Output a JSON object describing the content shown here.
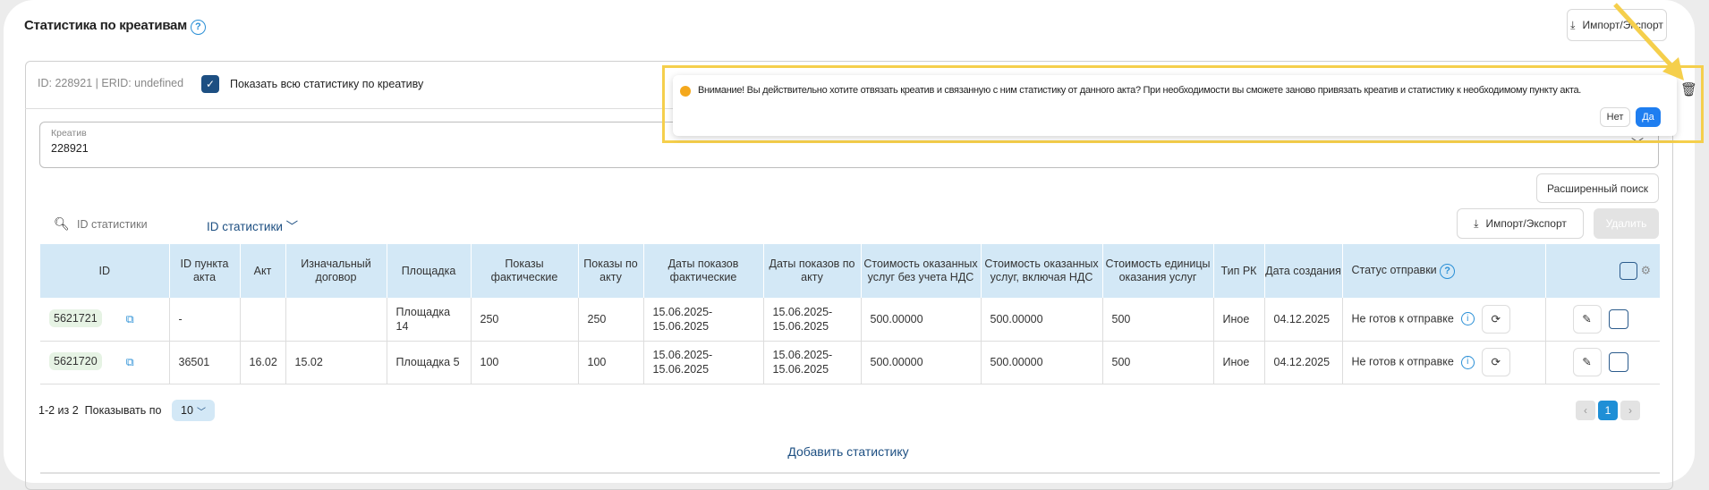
{
  "header": {
    "title": "Статистика по креативам",
    "import_export": "Импорт/Экспорт"
  },
  "card": {
    "meta": "ID: 228921 | ERID: undefined",
    "show_all_label": "Показать всю статистику по креативу",
    "show_all_checked": true,
    "creative_label": "Креатив",
    "creative_value": "228921"
  },
  "popup": {
    "message": "Внимание! Вы действительно хотите отвязать креатив и связанную с ним статистику от данного акта? При необходимости вы сможете заново привязать креатив и статистику к необходимому пункту акта.",
    "no": "Нет",
    "yes": "Да",
    "highlight_color": "#f5cf4c"
  },
  "toolbar": {
    "advanced_search": "Расширенный поиск",
    "search_placeholder": "ID статистики",
    "search_field": "ID статистики",
    "import_export": "Импорт/Экспорт",
    "delete": "Удалить"
  },
  "table": {
    "headers": [
      "ID",
      "ID пункта акта",
      "Акт",
      "Изначальный договор",
      "Площадка",
      "Показы фактические",
      "Показы по акту",
      "Даты показов фактические",
      "Даты показов по акту",
      "Стоимость оказанных услуг без учета НДС",
      "Стоимость оказанных услуг, включая НДС",
      "Стоимость единицы оказания услуг",
      "Тип РК",
      "Дата создания",
      "Статус отправки"
    ],
    "rows": [
      {
        "id": "5621721",
        "point": "-",
        "act": "",
        "contract": "",
        "site": "Площадка 14",
        "shows_fact": "250",
        "shows_act": "250",
        "dates_fact": "15.06.2025-15.06.2025",
        "dates_act": "15.06.2025-15.06.2025",
        "cost_no_vat": "500.00000",
        "cost_vat": "500.00000",
        "unit_cost": "500",
        "type": "Иное",
        "created": "04.12.2025",
        "status": "Не готов к отправке"
      },
      {
        "id": "5621720",
        "point": "36501",
        "act": "16.02",
        "contract": "15.02",
        "site": "Площадка 5",
        "shows_fact": "100",
        "shows_act": "100",
        "dates_fact": "15.06.2025-15.06.2025",
        "dates_act": "15.06.2025-15.06.2025",
        "cost_no_vat": "500.00000",
        "cost_vat": "500.00000",
        "unit_cost": "500",
        "type": "Иное",
        "created": "04.12.2025",
        "status": "Не готов к отправке"
      }
    ]
  },
  "pagination": {
    "range": "1-2 из 2",
    "show_label": "Показывать по",
    "per_page": "10",
    "current_page": "1"
  },
  "footer": {
    "add_statistics": "Добавить статистику"
  }
}
